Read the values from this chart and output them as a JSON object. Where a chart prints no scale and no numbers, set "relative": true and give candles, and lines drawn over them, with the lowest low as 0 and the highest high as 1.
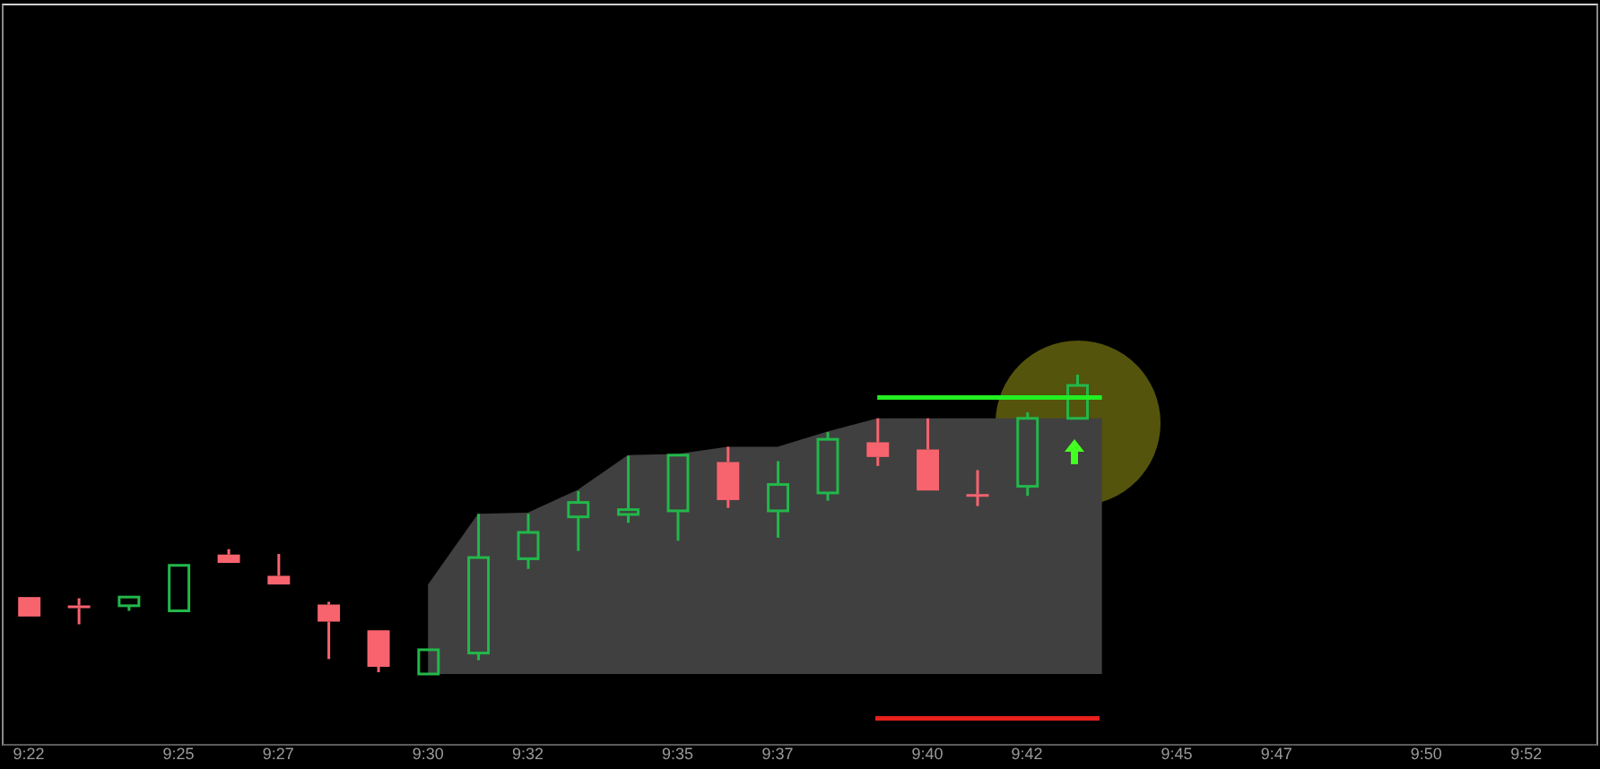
{
  "chart_data": {
    "type": "candlestick",
    "relative": true,
    "x": [
      9.3667,
      9.3833,
      9.4,
      9.4167,
      9.4333,
      9.45,
      9.4667,
      9.4833,
      9.5,
      9.5167,
      9.5333,
      9.55,
      9.5667,
      9.5833,
      9.6,
      9.6167,
      9.6333,
      9.65,
      9.6667,
      9.6833,
      9.7,
      9.7167
    ],
    "ohlc": [
      [
        0.257,
        0.257,
        0.192,
        0.192
      ],
      [
        0.229,
        0.253,
        0.166,
        0.22
      ],
      [
        0.228,
        0.257,
        0.211,
        0.257
      ],
      [
        0.211,
        0.363,
        0.211,
        0.363
      ],
      [
        0.399,
        0.417,
        0.371,
        0.371
      ],
      [
        0.328,
        0.401,
        0.299,
        0.299
      ],
      [
        0.232,
        0.241,
        0.05,
        0.175
      ],
      [
        0.146,
        0.146,
        0.006,
        0.024
      ],
      [
        0,
        0.081,
        0,
        0.081
      ],
      [
        0.07,
        0.535,
        0.046,
        0.389
      ],
      [
        0.385,
        0.535,
        0.351,
        0.473
      ],
      [
        0.525,
        0.611,
        0.411,
        0.573
      ],
      [
        0.533,
        0.729,
        0.505,
        0.549
      ],
      [
        0.545,
        0.731,
        0.445,
        0.731
      ],
      [
        0.708,
        0.759,
        0.555,
        0.581
      ],
      [
        0.545,
        0.711,
        0.455,
        0.633
      ],
      [
        0.605,
        0.808,
        0.579,
        0.784
      ],
      [
        0.774,
        0.854,
        0.695,
        0.725
      ],
      [
        0.75,
        0.854,
        0.613,
        0.613
      ],
      [
        0.601,
        0.681,
        0.561,
        0.593
      ],
      [
        0.627,
        0.874,
        0.595,
        0.854
      ],
      [
        0.854,
        1,
        0.854,
        0.964
      ]
    ],
    "colors": [
      "#f8646e",
      "#f8646e",
      "#22b84a",
      "#22b84a",
      "#f8646e",
      "#f8646e",
      "#f8646e",
      "#f8646e",
      "#22b84a",
      "#22b84a",
      "#22b84a",
      "#22b84a",
      "#22b84a",
      "#22b84a",
      "#f8646e",
      "#22b84a",
      "#22b84a",
      "#f8646e",
      "#f8646e",
      "#f8646e",
      "#22b84a",
      "#22b84a"
    ],
    "series": [
      {
        "type": "area",
        "color": "#404040",
        "x": [
          9.5,
          9.5167,
          9.5333,
          9.55,
          9.5667,
          9.5833,
          9.6,
          9.6167,
          9.6333,
          9.65,
          9.725
        ],
        "values": [
          0.299,
          0.535,
          0.539,
          0.615,
          0.731,
          0.735,
          0.759,
          0.759,
          0.81,
          0.854,
          0.854
        ]
      },
      {
        "type": "line",
        "color": "#22ee22",
        "x": [
          9.65,
          9.725
        ],
        "values": [
          0.924,
          0.924
        ]
      }
    ],
    "xlim": [
      9.3583,
      9.8889
    ],
    "xticks": [
      {
        "value": 9.3667,
        "label": "9:22"
      },
      {
        "value": 9.4167,
        "label": "9:25"
      },
      {
        "value": 9.45,
        "label": "9:27"
      },
      {
        "value": 9.5,
        "label": "9:30"
      },
      {
        "value": 9.5333,
        "label": "9:32"
      },
      {
        "value": 9.5833,
        "label": "9:35"
      },
      {
        "value": 9.6167,
        "label": "9:37"
      },
      {
        "value": 9.6667,
        "label": "9:40"
      },
      {
        "value": 9.7,
        "label": "9:42"
      },
      {
        "value": 9.75,
        "label": "9:45"
      },
      {
        "value": 9.7833,
        "label": "9:47"
      },
      {
        "value": 9.8333,
        "label": "9:50"
      },
      {
        "value": 9.8667,
        "label": "9:52"
      }
    ]
  }
}
